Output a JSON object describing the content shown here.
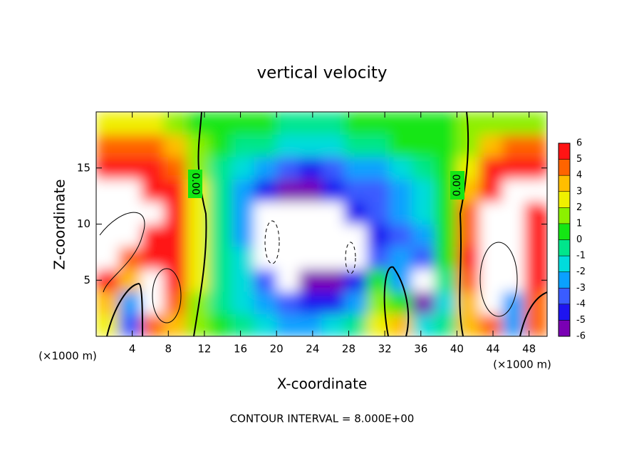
{
  "chart_data": {
    "type": "heatmap",
    "title": "vertical velocity",
    "x_label": "X-coordinate",
    "y_label": "Z-coordinate",
    "x_units": "(×1000 m)",
    "footnote": "CONTOUR INTERVAL = 8.000E+00",
    "contour_labels": [
      "0.00",
      "0.00"
    ],
    "xlim": [
      0,
      50
    ],
    "ylim": [
      0,
      20
    ],
    "xticks": [
      4,
      8,
      12,
      16,
      20,
      24,
      28,
      32,
      36,
      40,
      44,
      48
    ],
    "yticks": [
      5,
      10,
      15
    ],
    "x": [
      1.25,
      3.75,
      6.25,
      8.75,
      11.25,
      13.75,
      16.25,
      18.75,
      21.25,
      23.75,
      26.25,
      28.75,
      31.25,
      33.75,
      36.25,
      38.75,
      41.25,
      43.75,
      46.25,
      48.75
    ],
    "y": [
      1,
      3,
      5,
      7,
      9,
      11,
      13,
      15,
      17,
      19
    ],
    "z": [
      [
        2,
        -4,
        4,
        3,
        1,
        0,
        -1,
        -2,
        -3,
        -3,
        -2,
        -1,
        2,
        3,
        -2,
        -1,
        3,
        4,
        -3,
        4
      ],
      [
        3,
        -3,
        8,
        4,
        1,
        -1,
        -2,
        -3,
        -4,
        -5,
        -5,
        -3,
        1,
        0,
        -6,
        -2,
        3,
        8,
        -3,
        4
      ],
      [
        5,
        3,
        8,
        5,
        2,
        -1,
        -2,
        -4,
        -8,
        -6,
        -6,
        -5,
        0,
        -3,
        -8,
        -1,
        4,
        8,
        8,
        5
      ],
      [
        8,
        4,
        5,
        5,
        2,
        -1,
        -2,
        -8,
        -8,
        -8,
        -8,
        -8,
        -4,
        -3,
        -4,
        0,
        5,
        8,
        8,
        6
      ],
      [
        8,
        8,
        6,
        5,
        2,
        -1,
        -3,
        -8,
        -8,
        -8,
        -8,
        -8,
        -5,
        -4,
        -3,
        0,
        4,
        8,
        8,
        5
      ],
      [
        8,
        8,
        8,
        5,
        2,
        -1,
        -3,
        -8,
        -8,
        -8,
        -8,
        -5,
        -4,
        -3,
        -2,
        0,
        4,
        7,
        8,
        5
      ],
      [
        8,
        8,
        6,
        5,
        2,
        -1,
        -3,
        -5,
        -6,
        -6,
        -5,
        -4,
        -4,
        -3,
        -2,
        0,
        3,
        6,
        8,
        8
      ],
      [
        5,
        5,
        5,
        4,
        1,
        -1,
        -2,
        -3,
        -4,
        -5,
        -4,
        -3,
        -3,
        -2,
        -1,
        0,
        2,
        5,
        6,
        5
      ],
      [
        4,
        4,
        4,
        3,
        1,
        0,
        -1,
        -1,
        -2,
        -2,
        -2,
        -1,
        -1,
        0,
        0,
        0,
        1,
        3,
        4,
        4
      ],
      [
        2,
        2,
        2,
        1,
        0,
        0,
        0,
        0,
        -1,
        -1,
        -1,
        0,
        0,
        0,
        0,
        0,
        1,
        1,
        1,
        1
      ]
    ],
    "colorbar_ticks": [
      -6,
      -5,
      -4,
      -3,
      -2,
      -1,
      0,
      1,
      2,
      3,
      4,
      5,
      6
    ],
    "colors": [
      "#7a00b4",
      "#1e14f0",
      "#3a5cff",
      "#0aa0ff",
      "#00dcdc",
      "#00e68c",
      "#14e614",
      "#8cf000",
      "#f0f000",
      "#ffbe00",
      "#ff6400",
      "#ff1414"
    ],
    "out_of_range_color": "#ffffff"
  }
}
